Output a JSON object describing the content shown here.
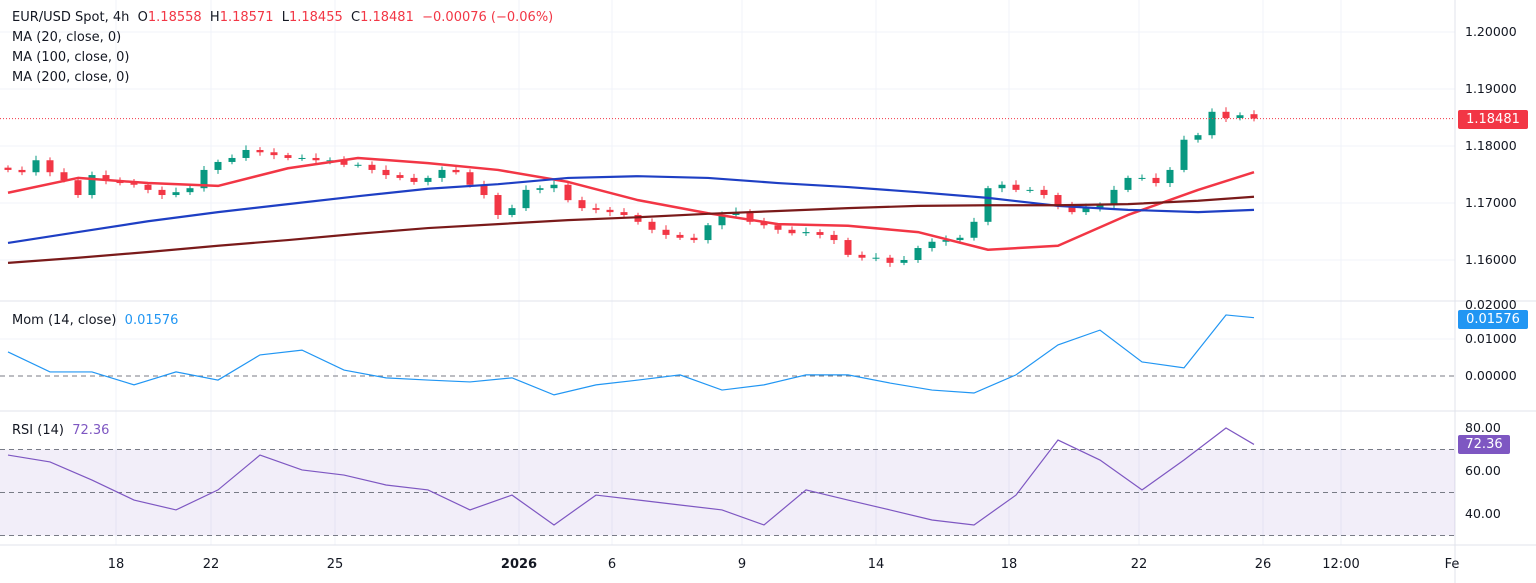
{
  "header": {
    "symbol": "EUR/USD Spot, 4h",
    "o_label": "O",
    "o": "1.18558",
    "h_label": "H",
    "h": "1.18571",
    "l_label": "L",
    "l": "1.18455",
    "c_label": "C",
    "c": "1.18481",
    "change": "−0.00076 (−0.06%)"
  },
  "indicators": {
    "ma20": "MA (20, close, 0)",
    "ma100": "MA (100, close, 0)",
    "ma200": "MA (200, close, 0)",
    "mom": "Mom (14, close)",
    "mom_value": "0.01576",
    "rsi": "RSI (14)",
    "rsi_value": "72.36"
  },
  "price_tag": "1.18481",
  "colors": {
    "up": "#089981",
    "down": "#F23645",
    "ma20": "#F23645",
    "ma100": "#1E3FC4",
    "ma200": "#7A1A1A",
    "mom": "#2196F3",
    "rsi": "#7E57C2"
  },
  "chart_data": [
    {
      "type": "candlestick",
      "ylim": [
        1.155,
        1.2
      ],
      "yticks": [
        "1.20000",
        "1.19000",
        "1.18000",
        "1.17000",
        "1.16000"
      ],
      "xticks": [
        "18",
        "22",
        "25",
        "2026",
        "6",
        "9",
        "14",
        "18",
        "22",
        "26",
        "12:00",
        "Fe"
      ],
      "last_open": 1.18558,
      "closes": [
        1.1758,
        1.1754,
        1.1775,
        1.1754,
        1.174,
        1.1714,
        1.1749,
        1.174,
        1.1735,
        1.1732,
        1.1723,
        1.1714,
        1.1719,
        1.1726,
        1.1758,
        1.1772,
        1.1779,
        1.1793,
        1.1789,
        1.1784,
        1.1779,
        1.1779,
        1.1775,
        1.1775,
        1.1767,
        1.1767,
        1.1758,
        1.1749,
        1.1744,
        1.1737,
        1.1744,
        1.1758,
        1.1754,
        1.1732,
        1.1714,
        1.1679,
        1.1691,
        1.1723,
        1.1726,
        1.1732,
        1.1705,
        1.1691,
        1.1688,
        1.1684,
        1.1679,
        1.1667,
        1.1653,
        1.1644,
        1.1639,
        1.1635,
        1.1661,
        1.1679,
        1.1684,
        1.1667,
        1.1661,
        1.1653,
        1.1647,
        1.1649,
        1.1644,
        1.1635,
        1.1609,
        1.1604,
        1.1604,
        1.1595,
        1.16,
        1.1621,
        1.1632,
        1.1635,
        1.1639,
        1.1667,
        1.1726,
        1.1732,
        1.1723,
        1.1723,
        1.1714,
        1.1696,
        1.1684,
        1.1691,
        1.1696,
        1.1723,
        1.1744,
        1.1744,
        1.1735,
        1.1758,
        1.1811,
        1.1819,
        1.186,
        1.1849,
        1.1854,
        1.18481
      ],
      "ma_step": 5,
      "series": [
        {
          "name": "MA (20, close, 0)",
          "values": [
            1.1718,
            1.1744,
            1.1735,
            1.173,
            1.1761,
            1.1779,
            1.177,
            1.1758,
            1.1737,
            1.1705,
            1.1682,
            1.1663,
            1.166,
            1.1649,
            1.1618,
            1.1625,
            1.1679,
            1.1723,
            1.1754
          ]
        },
        {
          "name": "MA (100, close, 0)",
          "values": [
            1.163,
            1.1649,
            1.1668,
            1.1684,
            1.1698,
            1.1712,
            1.1725,
            1.1733,
            1.1744,
            1.1747,
            1.1744,
            1.1735,
            1.1728,
            1.1719,
            1.1709,
            1.1695,
            1.1688,
            1.1684,
            1.1688
          ]
        },
        {
          "name": "MA (200, close, 0)",
          "values": [
            1.1595,
            1.1604,
            1.1614,
            1.1625,
            1.1635,
            1.1646,
            1.1656,
            1.1663,
            1.167,
            1.1675,
            1.1681,
            1.1686,
            1.1691,
            1.1695,
            1.1696,
            1.1696,
            1.1698,
            1.1704,
            1.1711
          ]
        }
      ]
    },
    {
      "type": "line",
      "name": "Mom (14, close)",
      "ylim": [
        -0.008,
        0.02
      ],
      "yticks": [
        "0.02000",
        "0.01000",
        "0.00000"
      ],
      "step": 3,
      "values": [
        0.0065,
        0.0011,
        0.0011,
        -0.0024,
        0.0011,
        -0.0011,
        0.0057,
        0.007,
        0.0016,
        -0.0005,
        -0.0011,
        -0.0016,
        -0.0005,
        -0.0051,
        -0.0024,
        -0.0011,
        0.0003,
        -0.0038,
        -0.0024,
        0.0003,
        0.0003,
        -0.0019,
        -0.0038,
        -0.0046,
        0.0003,
        0.0084,
        0.0124,
        0.0038,
        0.0022,
        0.0165,
        0.01576
      ]
    },
    {
      "type": "line",
      "name": "RSI (14)",
      "ylim": [
        25,
        85
      ],
      "bands": [
        70,
        50,
        30
      ],
      "yticks": [
        "80.00",
        "60.00",
        "40.00"
      ],
      "step": 3,
      "values": [
        67.4,
        64.2,
        55.8,
        46.5,
        41.9,
        51.2,
        67.4,
        60.5,
        58.1,
        53.5,
        51.2,
        41.9,
        48.8,
        34.9,
        48.8,
        46.5,
        44.2,
        41.9,
        34.9,
        51.2,
        46.5,
        41.9,
        37.2,
        34.9,
        48.8,
        74.4,
        65.1,
        51.2,
        65.1,
        80.0,
        72.36
      ]
    }
  ]
}
